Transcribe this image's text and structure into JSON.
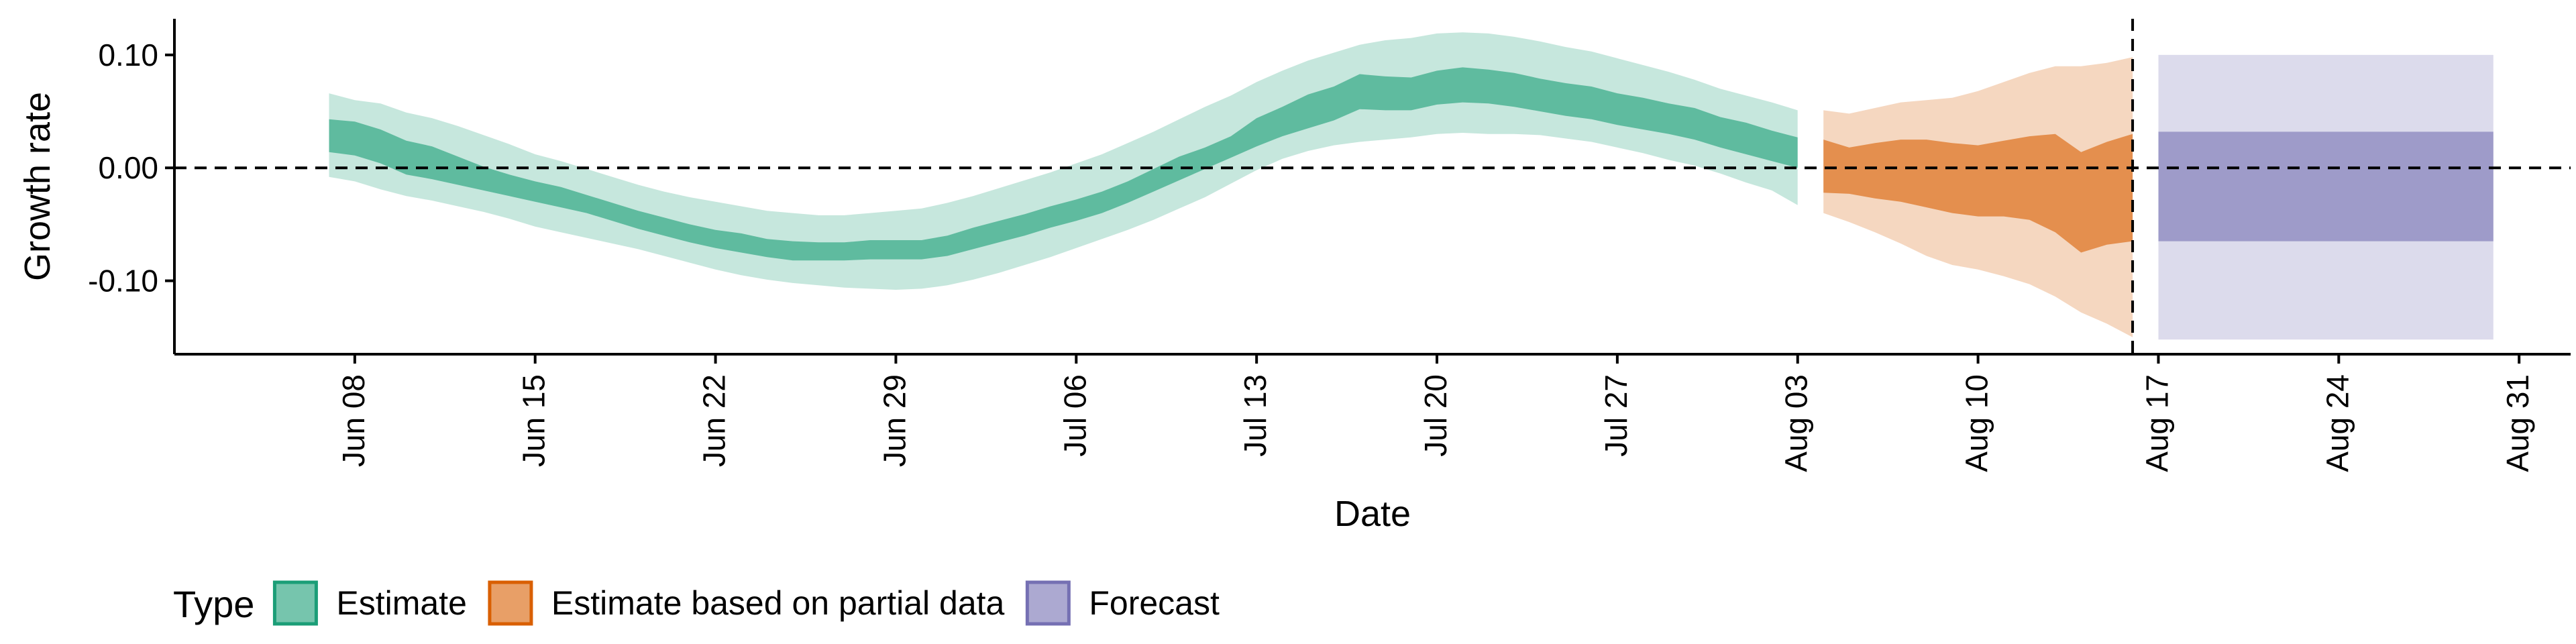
{
  "chart_data": {
    "type": "area",
    "title": "",
    "xlabel": "Date",
    "ylabel": "Growth rate",
    "x_range": [
      "2020-06-01",
      "2020-09-02"
    ],
    "ylim": [
      -0.165,
      0.132
    ],
    "y_ticks": [
      -0.1,
      0.0,
      0.1
    ],
    "y_tick_labels": [
      "-0.10",
      "0.00",
      "0.10"
    ],
    "x_ticks": [
      "2020-06-08",
      "2020-06-15",
      "2020-06-22",
      "2020-06-29",
      "2020-07-06",
      "2020-07-13",
      "2020-07-20",
      "2020-07-27",
      "2020-08-03",
      "2020-08-10",
      "2020-08-17",
      "2020-08-24",
      "2020-08-31"
    ],
    "x_tick_labels": [
      "Jun 08",
      "Jun 15",
      "Jun 22",
      "Jun 29",
      "Jul 06",
      "Jul 13",
      "Jul 20",
      "Jul 27",
      "Aug 03",
      "Aug 10",
      "Aug 17",
      "Aug 24",
      "Aug 31"
    ],
    "reference_lines": [
      {
        "orientation": "horizontal",
        "y": 0.0,
        "style": "dashed"
      },
      {
        "orientation": "vertical",
        "x": "2020-08-16",
        "style": "dashed"
      }
    ],
    "grid": false,
    "legend": {
      "title": "Type",
      "position": "bottom-left",
      "entries": [
        "Estimate",
        "Estimate based on partial data",
        "Forecast"
      ]
    },
    "series": [
      {
        "name": "Estimate",
        "color": "#1b9e77",
        "x": [
          "2020-06-07",
          "2020-06-08",
          "2020-06-09",
          "2020-06-10",
          "2020-06-11",
          "2020-06-12",
          "2020-06-13",
          "2020-06-14",
          "2020-06-15",
          "2020-06-16",
          "2020-06-17",
          "2020-06-18",
          "2020-06-19",
          "2020-06-20",
          "2020-06-21",
          "2020-06-22",
          "2020-06-23",
          "2020-06-24",
          "2020-06-25",
          "2020-06-26",
          "2020-06-27",
          "2020-06-28",
          "2020-06-29",
          "2020-06-30",
          "2020-07-01",
          "2020-07-02",
          "2020-07-03",
          "2020-07-04",
          "2020-07-05",
          "2020-07-06",
          "2020-07-07",
          "2020-07-08",
          "2020-07-09",
          "2020-07-10",
          "2020-07-11",
          "2020-07-12",
          "2020-07-13",
          "2020-07-14",
          "2020-07-15",
          "2020-07-16",
          "2020-07-17",
          "2020-07-18",
          "2020-07-19",
          "2020-07-20",
          "2020-07-21",
          "2020-07-22",
          "2020-07-23",
          "2020-07-24",
          "2020-07-25",
          "2020-07-26",
          "2020-07-27",
          "2020-07-28",
          "2020-07-29",
          "2020-07-30",
          "2020-07-31",
          "2020-08-01",
          "2020-08-02",
          "2020-08-03"
        ],
        "inner_upper": [
          0.043,
          0.041,
          0.034,
          0.024,
          0.019,
          0.01,
          0.001,
          -0.006,
          -0.012,
          -0.017,
          -0.024,
          -0.031,
          -0.038,
          -0.044,
          -0.05,
          -0.055,
          -0.058,
          -0.063,
          -0.065,
          -0.066,
          -0.066,
          -0.064,
          -0.064,
          -0.064,
          -0.06,
          -0.053,
          -0.047,
          -0.041,
          -0.034,
          -0.028,
          -0.021,
          -0.012,
          -0.001,
          0.01,
          0.018,
          0.028,
          0.044,
          0.054,
          0.065,
          0.072,
          0.083,
          0.081,
          0.08,
          0.086,
          0.089,
          0.087,
          0.084,
          0.079,
          0.075,
          0.072,
          0.066,
          0.062,
          0.057,
          0.053,
          0.045,
          0.04,
          0.033,
          0.027
        ],
        "inner_lower": [
          0.014,
          0.011,
          0.004,
          -0.006,
          -0.01,
          -0.015,
          -0.02,
          -0.025,
          -0.03,
          -0.035,
          -0.04,
          -0.047,
          -0.054,
          -0.06,
          -0.066,
          -0.071,
          -0.075,
          -0.079,
          -0.082,
          -0.082,
          -0.082,
          -0.081,
          -0.081,
          -0.081,
          -0.078,
          -0.072,
          -0.066,
          -0.06,
          -0.053,
          -0.047,
          -0.04,
          -0.031,
          -0.021,
          -0.011,
          -0.001,
          0.009,
          0.019,
          0.028,
          0.035,
          0.042,
          0.052,
          0.051,
          0.051,
          0.056,
          0.058,
          0.057,
          0.054,
          0.05,
          0.046,
          0.043,
          0.038,
          0.034,
          0.03,
          0.025,
          0.018,
          0.012,
          0.006,
          0.0
        ],
        "outer_upper": [
          0.066,
          0.06,
          0.057,
          0.049,
          0.044,
          0.037,
          0.029,
          0.021,
          0.012,
          0.006,
          -0.001,
          -0.008,
          -0.015,
          -0.021,
          -0.026,
          -0.03,
          -0.034,
          -0.038,
          -0.04,
          -0.042,
          -0.042,
          -0.04,
          -0.038,
          -0.036,
          -0.031,
          -0.025,
          -0.018,
          -0.011,
          -0.004,
          0.004,
          0.012,
          0.022,
          0.032,
          0.043,
          0.054,
          0.064,
          0.076,
          0.086,
          0.095,
          0.102,
          0.109,
          0.113,
          0.115,
          0.119,
          0.12,
          0.119,
          0.116,
          0.112,
          0.107,
          0.103,
          0.097,
          0.091,
          0.085,
          0.078,
          0.07,
          0.064,
          0.058,
          0.051
        ],
        "outer_lower": [
          -0.008,
          -0.012,
          -0.019,
          -0.025,
          -0.029,
          -0.034,
          -0.039,
          -0.045,
          -0.052,
          -0.057,
          -0.062,
          -0.067,
          -0.072,
          -0.078,
          -0.084,
          -0.09,
          -0.095,
          -0.099,
          -0.102,
          -0.104,
          -0.106,
          -0.107,
          -0.108,
          -0.107,
          -0.104,
          -0.099,
          -0.093,
          -0.086,
          -0.079,
          -0.071,
          -0.063,
          -0.055,
          -0.046,
          -0.036,
          -0.026,
          -0.014,
          -0.002,
          0.008,
          0.015,
          0.02,
          0.023,
          0.025,
          0.027,
          0.03,
          0.031,
          0.03,
          0.03,
          0.029,
          0.026,
          0.023,
          0.018,
          0.013,
          0.007,
          0.002,
          -0.005,
          -0.013,
          -0.02,
          -0.033
        ]
      },
      {
        "name": "Estimate based on partial data",
        "color": "#d95f02",
        "x": [
          "2020-08-04",
          "2020-08-05",
          "2020-08-06",
          "2020-08-07",
          "2020-08-08",
          "2020-08-09",
          "2020-08-10",
          "2020-08-11",
          "2020-08-12",
          "2020-08-13",
          "2020-08-14",
          "2020-08-15",
          "2020-08-16"
        ],
        "inner_upper": [
          0.025,
          0.018,
          0.022,
          0.025,
          0.025,
          0.022,
          0.02,
          0.024,
          0.028,
          0.03,
          0.014,
          0.023,
          0.03
        ],
        "inner_lower": [
          -0.022,
          -0.023,
          -0.027,
          -0.03,
          -0.035,
          -0.04,
          -0.043,
          -0.043,
          -0.046,
          -0.057,
          -0.075,
          -0.068,
          -0.065
        ],
        "outer_upper": [
          0.051,
          0.048,
          0.053,
          0.058,
          0.06,
          0.062,
          0.068,
          0.076,
          0.084,
          0.09,
          0.09,
          0.093,
          0.098
        ],
        "outer_lower": [
          -0.04,
          -0.048,
          -0.057,
          -0.067,
          -0.078,
          -0.086,
          -0.09,
          -0.096,
          -0.103,
          -0.114,
          -0.128,
          -0.138,
          -0.15
        ]
      },
      {
        "name": "Forecast",
        "color": "#7570b3",
        "x": [
          "2020-08-17",
          "2020-08-30"
        ],
        "inner_upper": [
          0.032,
          0.032
        ],
        "inner_lower": [
          -0.065,
          -0.065
        ],
        "outer_upper": [
          0.1,
          0.1
        ],
        "outer_lower": [
          -0.152,
          -0.152
        ]
      }
    ]
  }
}
